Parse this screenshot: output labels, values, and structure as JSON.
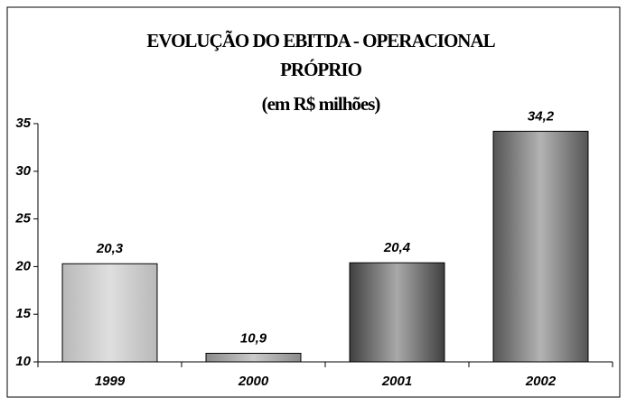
{
  "chart_data": {
    "type": "bar",
    "title": "EVOLUÇÃO DO EBITDA - OPERACIONAL",
    "title_line2": "PRÓPRIO",
    "subtitle": "(em R$ milhões)",
    "categories": [
      "1999",
      "2000",
      "2001",
      "2002"
    ],
    "values": [
      20.3,
      10.9,
      20.4,
      34.2
    ],
    "value_labels": [
      "20,3",
      "10,9",
      "20,4",
      "34,2"
    ],
    "colors": [
      "#b8b8b8",
      "#8a8a8a",
      "#404040",
      "#555555"
    ],
    "ylim": [
      10,
      35
    ],
    "yticks": [
      10,
      15,
      20,
      25,
      30,
      35
    ],
    "grid": false
  }
}
